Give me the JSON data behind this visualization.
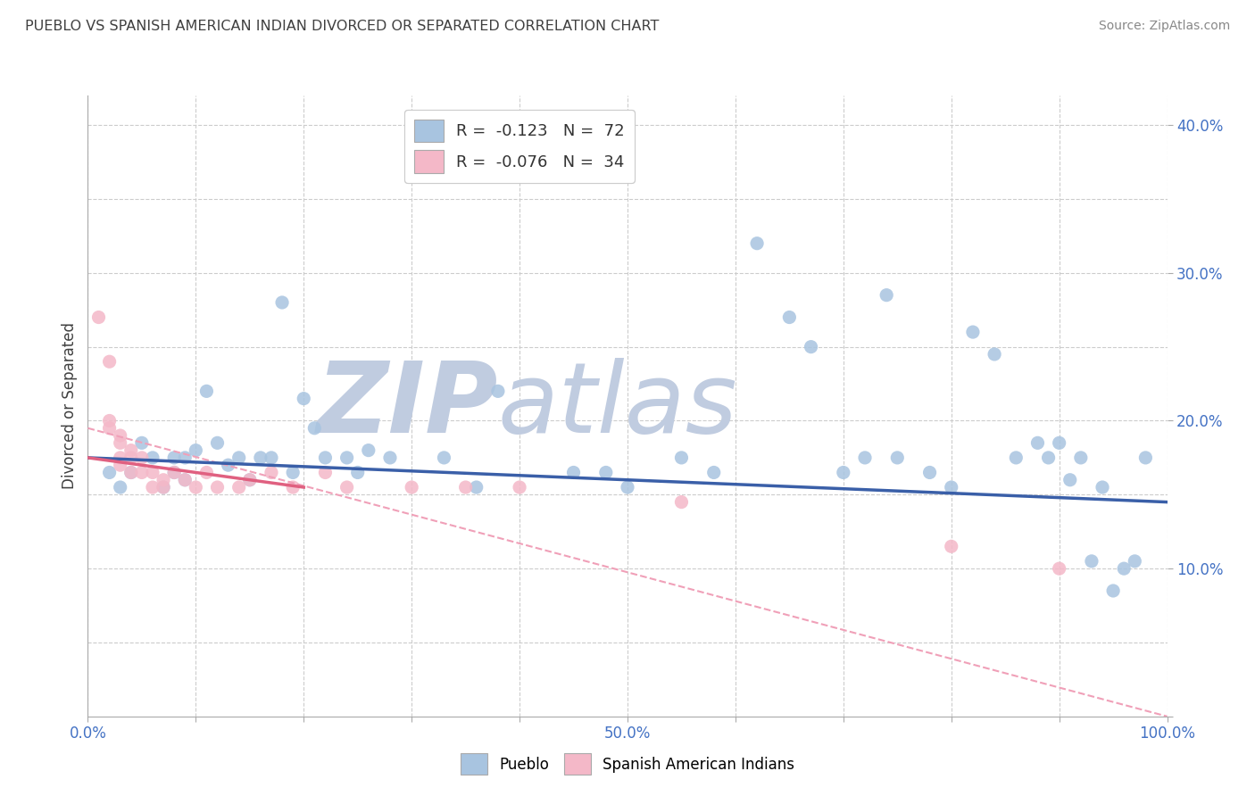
{
  "title": "PUEBLO VS SPANISH AMERICAN INDIAN DIVORCED OR SEPARATED CORRELATION CHART",
  "source": "Source: ZipAtlas.com",
  "ylabel": "Divorced or Separated",
  "watermark": "ZIPatlas",
  "legend_blue_text": "R =  -0.123   N =  72",
  "legend_pink_text": "R =  -0.076   N =  34",
  "legend_xlabel": "Pueblo",
  "legend_xlabel2": "Spanish American Indians",
  "xlim": [
    0.0,
    1.0
  ],
  "ylim": [
    0.0,
    0.42
  ],
  "xticks": [
    0.0,
    0.1,
    0.2,
    0.3,
    0.4,
    0.5,
    0.6,
    0.7,
    0.8,
    0.9,
    1.0
  ],
  "yticks": [
    0.0,
    0.05,
    0.1,
    0.15,
    0.2,
    0.25,
    0.3,
    0.35,
    0.4
  ],
  "ytick_labels_right": [
    "",
    "10.0%",
    "20.0%",
    "30.0%",
    "40.0%"
  ],
  "yticks_right": [
    0.0,
    0.1,
    0.2,
    0.3,
    0.4
  ],
  "xtick_labels": [
    "0.0%",
    "",
    "",
    "",
    "",
    "50.0%",
    "",
    "",
    "",
    "",
    "100.0%"
  ],
  "blue_scatter_x": [
    0.02,
    0.03,
    0.04,
    0.05,
    0.06,
    0.07,
    0.08,
    0.08,
    0.09,
    0.09,
    0.1,
    0.11,
    0.12,
    0.13,
    0.14,
    0.15,
    0.16,
    0.17,
    0.18,
    0.19,
    0.2,
    0.21,
    0.22,
    0.24,
    0.25,
    0.26,
    0.28,
    0.3,
    0.33,
    0.36,
    0.38,
    0.45,
    0.48,
    0.5,
    0.55,
    0.58,
    0.62,
    0.65,
    0.67,
    0.7,
    0.72,
    0.74,
    0.75,
    0.78,
    0.8,
    0.82,
    0.84,
    0.86,
    0.88,
    0.89,
    0.9,
    0.91,
    0.92,
    0.93,
    0.94,
    0.95,
    0.96,
    0.97,
    0.98
  ],
  "blue_scatter_y": [
    0.165,
    0.155,
    0.165,
    0.185,
    0.175,
    0.155,
    0.165,
    0.175,
    0.16,
    0.175,
    0.18,
    0.22,
    0.185,
    0.17,
    0.175,
    0.16,
    0.175,
    0.175,
    0.28,
    0.165,
    0.215,
    0.195,
    0.175,
    0.175,
    0.165,
    0.18,
    0.175,
    0.38,
    0.175,
    0.155,
    0.22,
    0.165,
    0.165,
    0.155,
    0.175,
    0.165,
    0.32,
    0.27,
    0.25,
    0.165,
    0.175,
    0.285,
    0.175,
    0.165,
    0.155,
    0.26,
    0.245,
    0.175,
    0.185,
    0.175,
    0.185,
    0.16,
    0.175,
    0.105,
    0.155,
    0.085,
    0.1,
    0.105,
    0.175
  ],
  "pink_scatter_x": [
    0.01,
    0.02,
    0.02,
    0.02,
    0.03,
    0.03,
    0.03,
    0.03,
    0.04,
    0.04,
    0.04,
    0.05,
    0.05,
    0.06,
    0.06,
    0.07,
    0.07,
    0.08,
    0.09,
    0.1,
    0.11,
    0.12,
    0.14,
    0.15,
    0.17,
    0.19,
    0.22,
    0.24,
    0.3,
    0.35,
    0.4,
    0.55,
    0.8,
    0.9
  ],
  "pink_scatter_y": [
    0.27,
    0.24,
    0.2,
    0.195,
    0.19,
    0.185,
    0.175,
    0.17,
    0.18,
    0.175,
    0.165,
    0.175,
    0.165,
    0.165,
    0.155,
    0.16,
    0.155,
    0.165,
    0.16,
    0.155,
    0.165,
    0.155,
    0.155,
    0.16,
    0.165,
    0.155,
    0.165,
    0.155,
    0.155,
    0.155,
    0.155,
    0.145,
    0.115,
    0.1
  ],
  "blue_line_x": [
    0.0,
    1.0
  ],
  "blue_line_y": [
    0.175,
    0.145
  ],
  "pink_solid_line_x": [
    0.0,
    0.2
  ],
  "pink_solid_line_y": [
    0.175,
    0.155
  ],
  "pink_dashed_line_x": [
    0.0,
    1.0
  ],
  "pink_dashed_line_y": [
    0.195,
    0.0
  ],
  "blue_color": "#a8c4e0",
  "pink_color": "#f4b8c8",
  "blue_line_color": "#3a5fa8",
  "pink_solid_line_color": "#e06080",
  "pink_dashed_line_color": "#f0a0b8",
  "grid_color": "#cccccc",
  "title_color": "#404040",
  "axis_label_color": "#4472c4",
  "ylabel_color": "#404040",
  "watermark_color_zip": "#c0cce0",
  "watermark_color_atlas": "#c0cce0",
  "background_color": "#ffffff"
}
